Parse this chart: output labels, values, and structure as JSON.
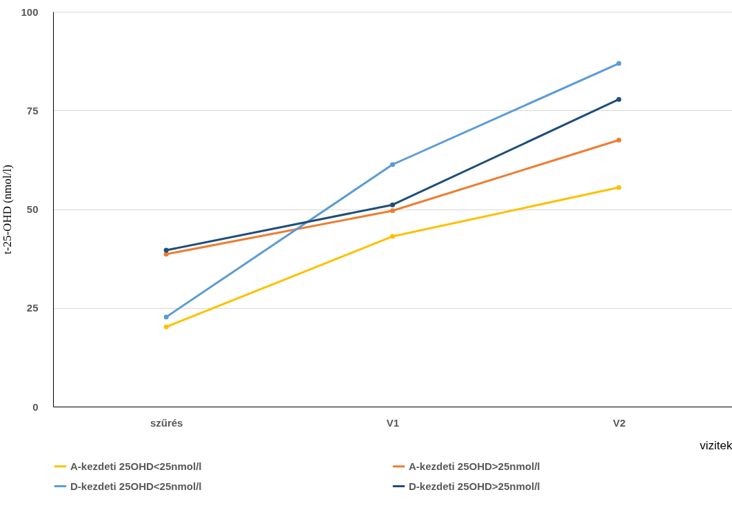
{
  "chart_data": {
    "type": "line",
    "xlabel": "vizitek",
    "ylabel": "t-25-OHD  (nmol/l)",
    "categories": [
      "szűrés",
      "V1",
      "V2"
    ],
    "series": [
      {
        "name": "A-kezdeti 25OHD<25nmol/l",
        "color": "#ffc000",
        "values": [
          20.2,
          43.1,
          55.5
        ]
      },
      {
        "name": "A-kezdeti 25OHD>25nmol/l",
        "color": "#ed7d31",
        "values": [
          38.6,
          49.6,
          67.5
        ]
      },
      {
        "name": "D-kezdeti 25OHD<25nmol/l",
        "color": "#5b9bd5",
        "values": [
          22.7,
          61.3,
          86.9
        ]
      },
      {
        "name": "D-kezdeti 25OHD>25nmol/l",
        "color": "#1f4e79",
        "values": [
          39.6,
          51.1,
          77.8
        ]
      }
    ],
    "ylim": [
      0,
      100
    ],
    "yticks": [
      0,
      25,
      50,
      75,
      100
    ],
    "grid": "y",
    "legend": "bottom",
    "marker": "circle",
    "line_style": "solid"
  }
}
